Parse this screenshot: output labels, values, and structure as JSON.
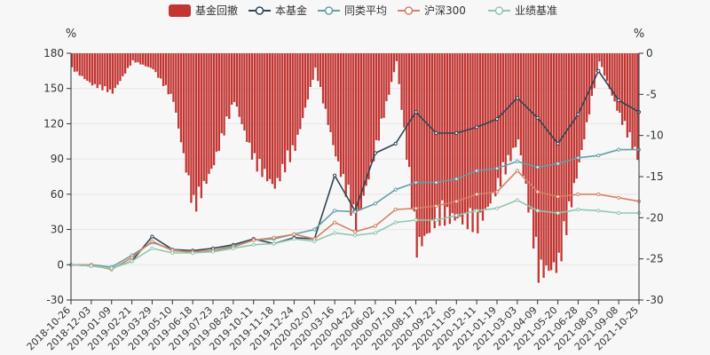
{
  "chart_data": {
    "type": "line",
    "legend": {
      "placement": "top-center",
      "items": [
        {
          "name": "基金回撤",
          "color": "#c23531",
          "kind": "bar"
        },
        {
          "name": "本基金",
          "color": "#2f4554",
          "kind": "line"
        },
        {
          "name": "同类平均",
          "color": "#61a0a8",
          "kind": "line"
        },
        {
          "name": "沪深300",
          "color": "#d48265",
          "kind": "line"
        },
        {
          "name": "业绩基准",
          "color": "#91c7ae",
          "kind": "line"
        }
      ]
    },
    "left_axis": {
      "unit": "%",
      "ticks": [
        180,
        150,
        120,
        90,
        60,
        30,
        0,
        -30
      ],
      "ylim": [
        -30,
        180
      ]
    },
    "right_axis": {
      "unit": "%",
      "ticks": [
        0,
        -5,
        -10,
        -15,
        -20,
        -25,
        -30
      ],
      "ylim": [
        -30,
        0
      ]
    },
    "x_tick_labels": [
      "2018-10-26",
      "2018-12-03",
      "2019-01-09",
      "2019-02-21",
      "2019-03-29",
      "2019-05-10",
      "2019-06-18",
      "2019-07-23",
      "2019-08-28",
      "2019-10-11",
      "2019-11-18",
      "2019-12-24",
      "2020-02-07",
      "2020-03-16",
      "2020-04-22",
      "2020-06-02",
      "2020-07-10",
      "2020-08-17",
      "2020-09-22",
      "2020-11-05",
      "2020-12-11",
      "2021-01-19",
      "2021-03-03",
      "2021-04-09",
      "2021-05-20",
      "2021-06-28",
      "2021-08-03",
      "2021-09-08",
      "2021-10-25"
    ],
    "x_index": [
      0,
      1,
      2,
      3,
      4,
      5,
      6,
      7,
      8,
      9,
      10,
      11,
      12,
      13,
      14,
      15,
      16,
      17,
      18,
      19,
      20,
      21,
      22,
      23,
      24,
      25,
      26,
      27,
      28
    ],
    "series": [
      {
        "name": "本基金",
        "axis": "left",
        "color": "#2f4554",
        "values": [
          0,
          -1,
          -3,
          3,
          24,
          13,
          12,
          14,
          17,
          22,
          18,
          23,
          22,
          76,
          46,
          95,
          103,
          130,
          112,
          112,
          117,
          124,
          142,
          125,
          103,
          128,
          165,
          140,
          130
        ]
      },
      {
        "name": "同类平均",
        "axis": "left",
        "color": "#61a0a8",
        "values": [
          0,
          0,
          -2,
          8,
          19,
          13,
          10,
          12,
          16,
          21,
          22,
          26,
          30,
          46,
          45,
          52,
          64,
          70,
          70,
          73,
          80,
          82,
          88,
          83,
          86,
          91,
          93,
          98,
          98
        ]
      },
      {
        "name": "沪深300",
        "axis": "left",
        "color": "#d48265",
        "values": [
          0,
          0,
          -4,
          6,
          20,
          12,
          11,
          12,
          15,
          21,
          23,
          26,
          22,
          36,
          28,
          33,
          47,
          48,
          50,
          54,
          60,
          62,
          80,
          62,
          58,
          60,
          60,
          57,
          54
        ]
      },
      {
        "name": "业绩基准",
        "axis": "left",
        "color": "#91c7ae",
        "values": [
          0,
          -1,
          -3,
          3,
          14,
          10,
          10,
          11,
          14,
          17,
          18,
          22,
          20,
          27,
          25,
          27,
          36,
          38,
          38,
          42,
          46,
          48,
          55,
          46,
          44,
          47,
          46,
          44,
          44
        ]
      },
      {
        "name": "基金回撤",
        "axis": "right",
        "color": "#c23531",
        "values": [
          -2,
          -4,
          -5,
          -1,
          -2,
          -6,
          -20,
          -14,
          -6,
          -14,
          -17,
          -12,
          -2,
          -13,
          -22,
          -12,
          -1,
          -25,
          -21,
          -21,
          -22,
          -17,
          -11,
          -28,
          -27,
          -14,
          -1,
          -8,
          -14
        ]
      }
    ]
  }
}
